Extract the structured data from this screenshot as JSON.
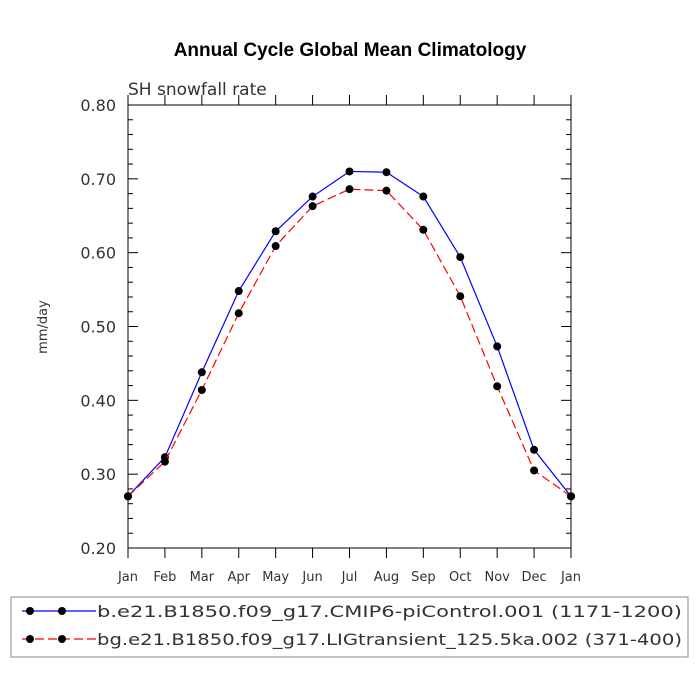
{
  "chart_data": {
    "type": "line",
    "title": "Annual Cycle Global Mean Climatology",
    "subtitle": "SH snowfall rate",
    "xlabel": "",
    "ylabel": "mm/day",
    "categories": [
      "Jan",
      "Feb",
      "Mar",
      "Apr",
      "May",
      "Jun",
      "Jul",
      "Aug",
      "Sep",
      "Oct",
      "Nov",
      "Dec",
      "Jan"
    ],
    "ylim": [
      0.2,
      0.8
    ],
    "yticks": [
      "0.20",
      "0.30",
      "0.40",
      "0.50",
      "0.60",
      "0.70",
      "0.80"
    ],
    "grid": false,
    "legend_position": "bottom",
    "series": [
      {
        "name": "b.e21.B1850.f09_g17.CMIP6-piControl.001 (1171-1200)",
        "color": "#0000ff",
        "dash": "solid",
        "values": [
          0.27,
          0.323,
          0.438,
          0.548,
          0.629,
          0.676,
          0.71,
          0.709,
          0.676,
          0.594,
          0.473,
          0.333,
          0.27
        ]
      },
      {
        "name": "bg.e21.B1850.f09_g17.LIGtransient_125.5ka.002 (371-400)",
        "color": "#ff0000",
        "dash": "dashed",
        "values": [
          0.27,
          0.317,
          0.414,
          0.518,
          0.609,
          0.663,
          0.686,
          0.684,
          0.631,
          0.541,
          0.419,
          0.305,
          0.27
        ]
      }
    ]
  }
}
